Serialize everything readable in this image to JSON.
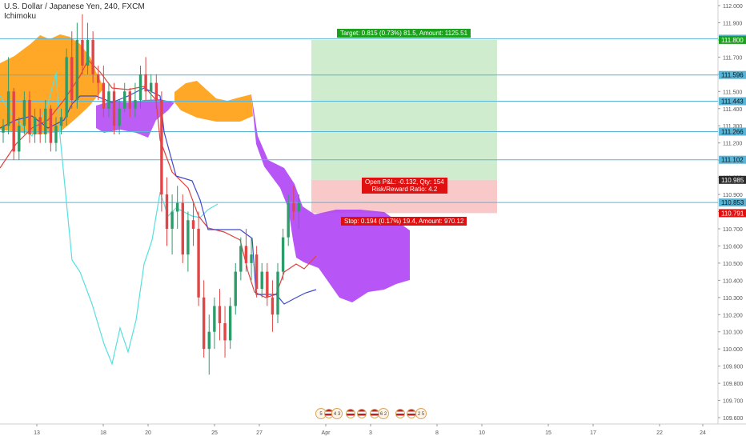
{
  "header": {
    "symbol_line": "U.S. Dollar / Japanese Yen, 240, FXCM",
    "indicator": "Ichimoku"
  },
  "price_axis": {
    "ticks": [
      "112.000",
      "111.900",
      "111.800",
      "111.700",
      "111.600",
      "111.500",
      "111.400",
      "111.300",
      "111.200",
      "111.100",
      "111.000",
      "110.900",
      "110.800",
      "110.700",
      "110.600",
      "110.500",
      "110.400",
      "110.300",
      "110.200",
      "110.100",
      "110.000",
      "109.900",
      "109.800",
      "109.700",
      "109.600"
    ],
    "levels": [
      {
        "label": "111.807",
        "color": "#5ab4d6",
        "text": "#111"
      },
      {
        "label": "111.800",
        "color": "#1ba11b",
        "text": "#fff"
      },
      {
        "label": "111.596",
        "color": "#5ab4d6",
        "text": "#111"
      },
      {
        "label": "111.443",
        "color": "#5ab4d6",
        "text": "#111"
      },
      {
        "label": "111.266",
        "color": "#5ab4d6",
        "text": "#111"
      },
      {
        "label": "111.102",
        "color": "#5ab4d6",
        "text": "#111"
      },
      {
        "label": "110.985",
        "color": "#2b2b2b",
        "text": "#fff"
      },
      {
        "label": "110.853",
        "color": "#5ab4d6",
        "text": "#111"
      },
      {
        "label": "110.791",
        "color": "#e01010",
        "text": "#fff"
      }
    ]
  },
  "time_axis": {
    "ticks": [
      "13",
      "18",
      "20",
      "25",
      "27",
      "Apr",
      "3",
      "8",
      "10",
      "15",
      "17",
      "22",
      "24"
    ]
  },
  "position": {
    "target_label": "Target: 0.815 (0.73%) 81.5, Amount: 1125.51",
    "pnl_label": "Open P&L: -0.132, Qty: 154",
    "rr_label": "Risk/Reward Ratio: 4.2",
    "stop_label": "Stop: 0.194 (0.17%) 19.4, Amount: 970.12"
  },
  "events": [
    {
      "name": "event-5",
      "text": "5"
    },
    {
      "name": "event-4-3",
      "text": "4 3"
    },
    {
      "name": "event-6-2",
      "text": "6 2"
    },
    {
      "name": "event-2-5",
      "text": "2 5"
    }
  ],
  "colors": {
    "up": "#2e9c6a",
    "down": "#e14545",
    "cloud_bull": "#ff9800",
    "cloud_bear": "#b042f5",
    "kijun": "#3f48cc",
    "tenkan": "#e0423f",
    "chikou": "#56e0e0",
    "hline": "#5ab4d6",
    "target_fill": "#cfeccf",
    "stop_fill": "#f9c9c9"
  },
  "chart_data": {
    "type": "candlestick",
    "title": "U.S. Dollar / Japanese Yen, 240, FXCM",
    "ylim": [
      109.6,
      112.0
    ],
    "horizontal_levels": [
      111.807,
      111.596,
      111.443,
      111.266,
      111.102,
      110.853
    ],
    "position": {
      "entry": 110.985,
      "target": 111.8,
      "stop": 110.791
    },
    "candles": [
      [
        111.26,
        111.34,
        111.2,
        111.3
      ],
      [
        111.3,
        111.7,
        111.25,
        111.5
      ],
      [
        111.5,
        111.52,
        111.1,
        111.15
      ],
      [
        111.15,
        111.35,
        111.1,
        111.3
      ],
      [
        111.3,
        111.5,
        111.25,
        111.45
      ],
      [
        111.45,
        111.5,
        111.2,
        111.25
      ],
      [
        111.25,
        111.4,
        111.2,
        111.35
      ],
      [
        111.35,
        111.4,
        111.2,
        111.25
      ],
      [
        111.25,
        111.45,
        111.2,
        111.4
      ],
      [
        111.4,
        111.42,
        111.15,
        111.2
      ],
      [
        111.2,
        111.35,
        111.15,
        111.3
      ],
      [
        111.3,
        111.4,
        111.25,
        111.35
      ],
      [
        111.35,
        111.75,
        111.3,
        111.7
      ],
      [
        111.7,
        111.85,
        111.4,
        111.45
      ],
      [
        111.45,
        111.9,
        111.4,
        111.8
      ],
      [
        111.8,
        111.95,
        111.6,
        111.65
      ],
      [
        111.65,
        111.9,
        111.6,
        111.8
      ],
      [
        111.8,
        111.85,
        111.55,
        111.6
      ],
      [
        111.6,
        111.65,
        111.45,
        111.55
      ],
      [
        111.55,
        111.65,
        111.35,
        111.4
      ],
      [
        111.4,
        111.55,
        111.35,
        111.5
      ],
      [
        111.5,
        111.55,
        111.25,
        111.3
      ],
      [
        111.3,
        111.45,
        111.25,
        111.4
      ],
      [
        111.4,
        111.55,
        111.38,
        111.5
      ],
      [
        111.5,
        111.52,
        111.35,
        111.4
      ],
      [
        111.4,
        111.55,
        111.35,
        111.45
      ],
      [
        111.45,
        111.65,
        111.4,
        111.6
      ],
      [
        111.6,
        111.7,
        111.45,
        111.5
      ],
      [
        111.5,
        111.6,
        111.45,
        111.55
      ],
      [
        111.55,
        111.6,
        111.4,
        111.45
      ],
      [
        111.45,
        111.5,
        110.8,
        110.9
      ],
      [
        110.9,
        111.0,
        110.6,
        110.7
      ],
      [
        110.7,
        110.9,
        110.55,
        110.8
      ],
      [
        110.8,
        110.95,
        110.7,
        110.85
      ],
      [
        110.85,
        110.9,
        110.5,
        110.55
      ],
      [
        110.55,
        110.8,
        110.45,
        110.75
      ],
      [
        110.75,
        110.85,
        110.6,
        110.7
      ],
      [
        110.7,
        110.8,
        110.25,
        110.3
      ],
      [
        110.3,
        110.4,
        109.95,
        110.0
      ],
      [
        110.0,
        110.2,
        109.85,
        110.1
      ],
      [
        110.1,
        110.3,
        110.0,
        110.25
      ],
      [
        110.25,
        110.35,
        110.05,
        110.15
      ],
      [
        110.15,
        110.25,
        109.95,
        110.05
      ],
      [
        110.05,
        110.3,
        110.0,
        110.25
      ],
      [
        110.25,
        110.5,
        110.2,
        110.45
      ],
      [
        110.45,
        110.65,
        110.4,
        110.6
      ],
      [
        110.6,
        110.7,
        110.45,
        110.5
      ],
      [
        110.5,
        110.65,
        110.4,
        110.55
      ],
      [
        110.55,
        110.6,
        110.3,
        110.35
      ],
      [
        110.35,
        110.5,
        110.3,
        110.45
      ],
      [
        110.45,
        110.5,
        110.25,
        110.3
      ],
      [
        110.3,
        110.4,
        110.1,
        110.2
      ],
      [
        110.2,
        110.5,
        110.15,
        110.45
      ],
      [
        110.45,
        110.7,
        110.4,
        110.65
      ],
      [
        110.65,
        110.9,
        110.6,
        110.85
      ],
      [
        110.85,
        110.95,
        110.75,
        110.8
      ],
      [
        110.8,
        110.9,
        110.7,
        110.85
      ]
    ]
  }
}
